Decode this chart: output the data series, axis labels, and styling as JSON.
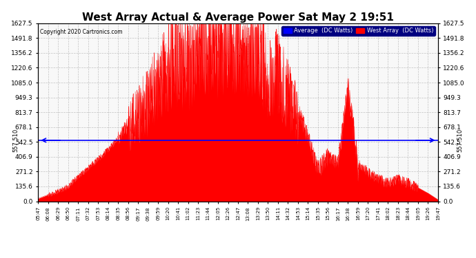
{
  "title": "West Array Actual & Average Power Sat May 2 19:51",
  "copyright": "Copyright 2020 Cartronics.com",
  "avg_label": "Average  (DC Watts)",
  "west_label": "West Array  (DC Watts)",
  "avg_value": 557.51,
  "ymax": 1627.5,
  "yticks": [
    0.0,
    135.6,
    271.2,
    406.9,
    542.5,
    678.1,
    813.7,
    949.3,
    1085.0,
    1220.6,
    1356.2,
    1491.8,
    1627.5
  ],
  "background_color": "#ffffff",
  "fill_color": "#ff0000",
  "avg_line_color": "#0000ff",
  "grid_color": "#bbbbbb",
  "title_fontsize": 11,
  "axis_bg_color": "#f8f8f8",
  "time_labels": [
    "05:47",
    "06:08",
    "06:29",
    "06:50",
    "07:11",
    "07:32",
    "07:53",
    "08:14",
    "08:35",
    "08:56",
    "09:17",
    "09:38",
    "09:59",
    "10:20",
    "10:41",
    "11:02",
    "11:23",
    "11:44",
    "12:05",
    "12:26",
    "12:47",
    "13:08",
    "13:29",
    "13:50",
    "14:11",
    "14:32",
    "14:53",
    "15:14",
    "15:35",
    "15:56",
    "16:17",
    "16:38",
    "16:59",
    "17:20",
    "17:41",
    "18:02",
    "18:23",
    "18:44",
    "19:05",
    "19:26",
    "19:47"
  ],
  "power_values": [
    25,
    60,
    95,
    140,
    230,
    310,
    390,
    480,
    580,
    720,
    870,
    980,
    1180,
    1340,
    1390,
    1330,
    1460,
    1580,
    1540,
    1610,
    1625,
    1575,
    1540,
    1190,
    1290,
    1040,
    840,
    590,
    295,
    415,
    365,
    1090,
    345,
    275,
    215,
    175,
    215,
    175,
    125,
    75,
    15
  ],
  "spike_seed": 123
}
